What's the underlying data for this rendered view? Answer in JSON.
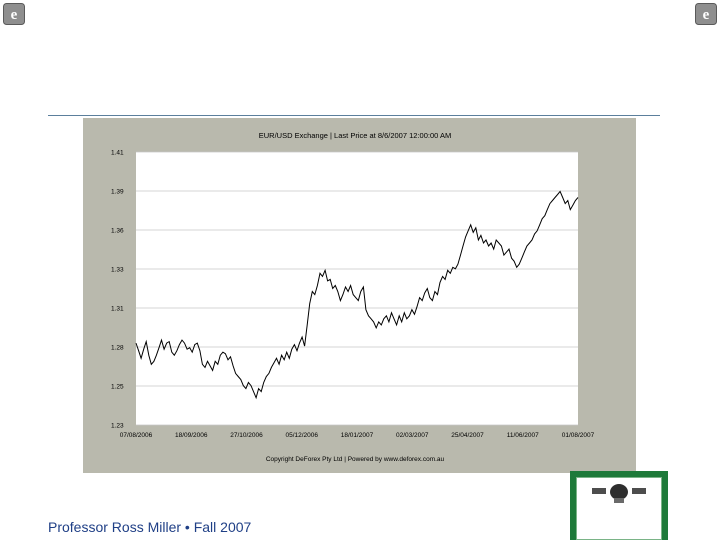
{
  "slide": {
    "footer_text": "Professor Ross Miller • Fall 2007",
    "accent_color": "#1f3f86",
    "icons": [
      "ie-logo-icon",
      "ie-logo-icon",
      "certificate-icon"
    ]
  },
  "chart_data": {
    "type": "line",
    "title": "EUR/USD Exchange  |  Last Price at 8/6/2007 12:00:00 AM",
    "copyright": "Copyright DeForex Pty Ltd   |   Powered by www.deforex.com.au",
    "xlabel": "",
    "ylabel": "",
    "ylim": [
      1.23,
      1.41
    ],
    "yticks": [
      "1.41",
      "1.39",
      "1.36",
      "1.33",
      "1.31",
      "1.28",
      "1.25",
      "1.23"
    ],
    "xticks": [
      "07/08/2006",
      "18/09/2006",
      "27/10/2006",
      "05/12/2006",
      "18/01/2007",
      "02/03/2007",
      "25/04/2007",
      "11/06/2007",
      "01/08/2007"
    ],
    "grid": true,
    "line_color": "#000000",
    "series": [
      {
        "name": "",
        "values": [
          1.284,
          1.279,
          1.274,
          1.28,
          1.285,
          1.276,
          1.27,
          1.272,
          1.276,
          1.281,
          1.286,
          1.28,
          1.284,
          1.285,
          1.278,
          1.276,
          1.279,
          1.283,
          1.286,
          1.284,
          1.28,
          1.281,
          1.278,
          1.283,
          1.284,
          1.279,
          1.27,
          1.268,
          1.272,
          1.269,
          1.266,
          1.272,
          1.27,
          1.276,
          1.278,
          1.277,
          1.273,
          1.275,
          1.269,
          1.264,
          1.262,
          1.26,
          1.256,
          1.254,
          1.258,
          1.256,
          1.252,
          1.248,
          1.254,
          1.252,
          1.258,
          1.262,
          1.264,
          1.268,
          1.271,
          1.274,
          1.27,
          1.276,
          1.273,
          1.278,
          1.274,
          1.28,
          1.283,
          1.279,
          1.284,
          1.288,
          1.282,
          1.296,
          1.31,
          1.318,
          1.316,
          1.322,
          1.33,
          1.328,
          1.332,
          1.325,
          1.326,
          1.32,
          1.322,
          1.318,
          1.312,
          1.316,
          1.321,
          1.318,
          1.322,
          1.316,
          1.314,
          1.312,
          1.318,
          1.321,
          1.306,
          1.302,
          1.3,
          1.298,
          1.294,
          1.298,
          1.296,
          1.3,
          1.302,
          1.298,
          1.304,
          1.3,
          1.296,
          1.302,
          1.298,
          1.304,
          1.3,
          1.302,
          1.306,
          1.303,
          1.308,
          1.314,
          1.312,
          1.317,
          1.32,
          1.314,
          1.312,
          1.318,
          1.316,
          1.324,
          1.328,
          1.326,
          1.332,
          1.33,
          1.334,
          1.333,
          1.336,
          1.342,
          1.348,
          1.354,
          1.358,
          1.362,
          1.357,
          1.36,
          1.352,
          1.355,
          1.35,
          1.352,
          1.348,
          1.35,
          1.346,
          1.352,
          1.35,
          1.348,
          1.342,
          1.344,
          1.346,
          1.34,
          1.338,
          1.334,
          1.336,
          1.34,
          1.344,
          1.348,
          1.35,
          1.352,
          1.356,
          1.358,
          1.362,
          1.366,
          1.368,
          1.372,
          1.376,
          1.378,
          1.38,
          1.382,
          1.384,
          1.38,
          1.376,
          1.378,
          1.372,
          1.375,
          1.378,
          1.38
        ]
      }
    ]
  }
}
